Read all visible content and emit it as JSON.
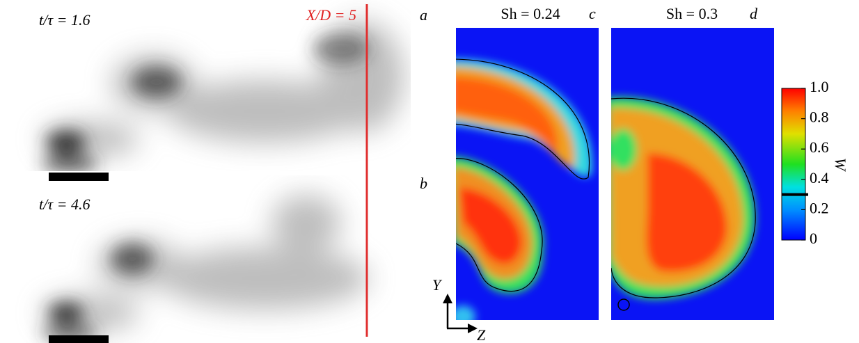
{
  "panels": {
    "left_top": {
      "letter": "a",
      "time_label": "t/τ = 1.6"
    },
    "left_bottom": {
      "letter": "b",
      "time_label": "t/τ = 4.6"
    },
    "section_label": "X/D = 5",
    "right_c": {
      "letter": "c",
      "title": "Sh = 0.24"
    },
    "right_d": {
      "letter": "d",
      "title": "Sh = 0.3"
    },
    "axes": {
      "y": "Y",
      "z": "Z"
    }
  },
  "colorbar": {
    "label": "W",
    "lim": [
      0,
      1
    ],
    "ticks": [
      0,
      {
        "value": 0.2,
        "label": "0.2"
      },
      {
        "value": 0.4,
        "label": "0.4"
      },
      {
        "value": 0.6,
        "label": "0.6"
      },
      {
        "value": 0.8,
        "label": "0.8"
      },
      {
        "value": 1,
        "label": "1.0"
      }
    ],
    "contour_level": 0.3
  }
}
